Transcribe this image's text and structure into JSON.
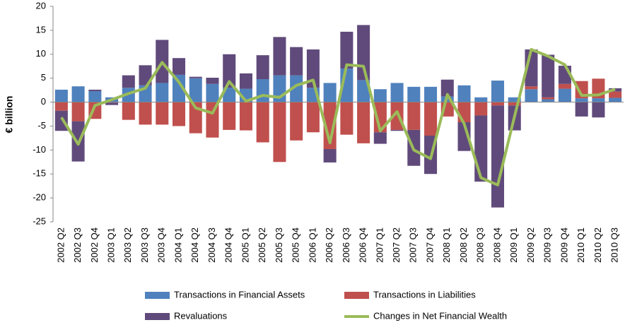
{
  "chart_data": {
    "type": "bar",
    "stacked": true,
    "y_label": "€ billion",
    "categories": [
      "2002 Q2",
      "2002 Q3",
      "2002 Q4",
      "2003 Q1",
      "2003 Q2",
      "2003 Q3",
      "2003 Q4",
      "2004 Q1",
      "2004 Q2",
      "2004 Q3",
      "2004 Q4",
      "2005 Q1",
      "2005 Q2",
      "2005 Q3",
      "2005 Q4",
      "2006 Q1",
      "2006 Q2",
      "2006 Q3",
      "2006 Q4",
      "2007 Q1",
      "2007 Q2",
      "2007 Q3",
      "2007 Q4",
      "2008 Q1",
      "2008 Q2",
      "2008 Q3",
      "2008 Q4",
      "2009 Q1",
      "2009 Q2",
      "2009 Q3",
      "2009 Q4",
      "2010 Q1",
      "2010 Q2",
      "2010 Q3"
    ],
    "series": [
      {
        "name": "Transactions in Financial Assets",
        "color": "#4f81bd",
        "type": "bar",
        "values": [
          2.6,
          3.3,
          2.3,
          1.0,
          3.0,
          3.5,
          4.0,
          5.7,
          5.0,
          3.8,
          3.0,
          2.8,
          4.8,
          5.6,
          5.6,
          3.0,
          4.0,
          7.0,
          4.6,
          2.7,
          4.0,
          3.2,
          3.2,
          1.2,
          3.5,
          1.0,
          4.5,
          1.0,
          2.7,
          0.6,
          2.8,
          0.8,
          0.8,
          0.9
        ]
      },
      {
        "name": "Transactions in Liabilities",
        "color": "#c0504d",
        "type": "bar",
        "values": [
          -1.8,
          -4.0,
          -3.5,
          -0.1,
          -3.7,
          -4.7,
          -4.7,
          -5.0,
          -6.5,
          -7.4,
          -5.8,
          -5.9,
          -8.4,
          -12.5,
          -8.0,
          -6.3,
          -9.8,
          -6.8,
          -8.6,
          -6.3,
          -5.8,
          -5.8,
          -7.0,
          -3.0,
          -4.2,
          -2.8,
          -0.7,
          -0.7,
          0.6,
          0.4,
          1.0,
          3.6,
          4.1,
          1.3
        ]
      },
      {
        "name": "Revaluations",
        "color": "#604a7b",
        "type": "bar",
        "values": [
          -4.2,
          -8.4,
          0.3,
          -0.5,
          2.6,
          4.2,
          9.0,
          3.5,
          0.3,
          1.3,
          7.0,
          3.2,
          5.0,
          8.0,
          5.9,
          8.0,
          -2.8,
          7.7,
          11.5,
          -2.4,
          -0.2,
          -7.5,
          -8.0,
          3.5,
          -6.0,
          -13.8,
          -21.3,
          -5.2,
          7.7,
          8.9,
          3.8,
          -3.0,
          -3.2,
          0.7
        ]
      },
      {
        "name": "Changes in Net Financial Wealth",
        "color": "#9bbb59",
        "type": "line",
        "values": [
          -3.2,
          -8.8,
          -0.7,
          0.5,
          1.8,
          2.9,
          8.3,
          4.2,
          -1.2,
          -2.3,
          4.3,
          0.2,
          1.4,
          1.0,
          3.5,
          4.6,
          -8.5,
          7.8,
          7.5,
          -6.0,
          -2.0,
          -10.0,
          -11.8,
          1.6,
          -4.5,
          -15.8,
          -17.3,
          -3.0,
          11.0,
          9.6,
          7.8,
          1.4,
          1.5,
          2.7
        ]
      }
    ],
    "ylim": [
      -25,
      20
    ],
    "yticks": [
      20,
      15,
      10,
      5,
      0,
      -5,
      -10,
      -15,
      -20,
      -25
    ],
    "grid": false
  }
}
